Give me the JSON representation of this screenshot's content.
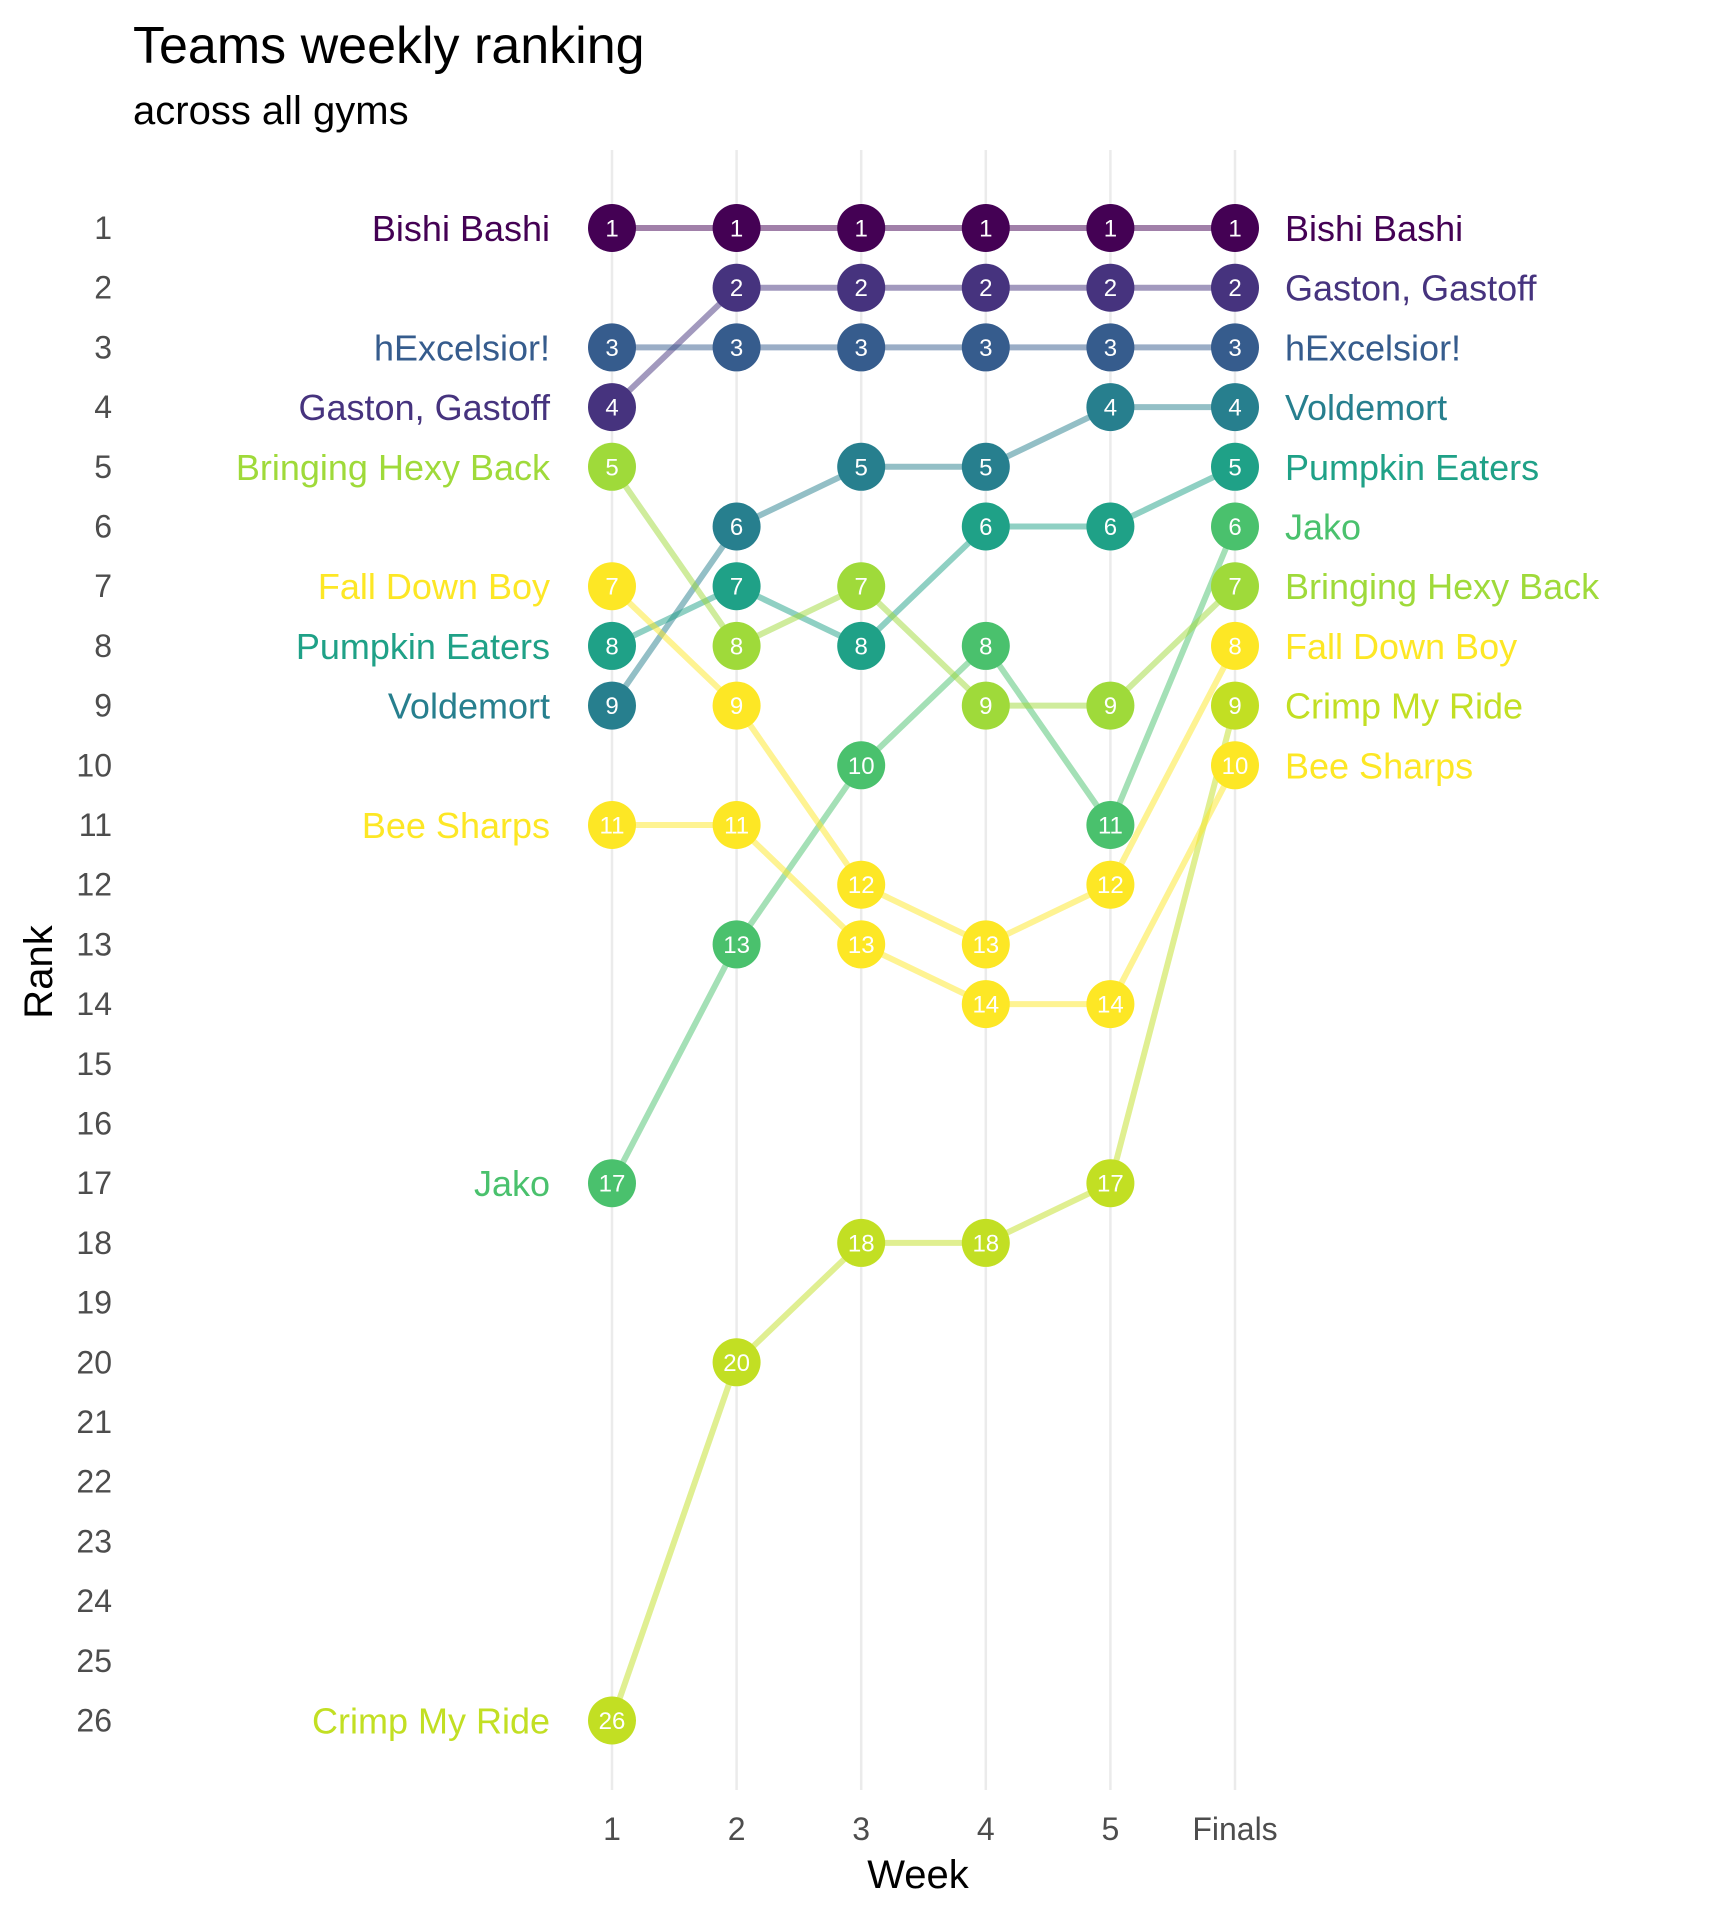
{
  "chart_data": {
    "type": "line",
    "title": "Teams weekly ranking",
    "subtitle": "across all gyms",
    "xlabel": "Week",
    "ylabel": "Rank",
    "categories": [
      "1",
      "2",
      "3",
      "4",
      "5",
      "Finals"
    ],
    "y_ticks": [
      1,
      2,
      3,
      4,
      5,
      6,
      7,
      8,
      9,
      10,
      11,
      12,
      13,
      14,
      15,
      16,
      17,
      18,
      19,
      20,
      21,
      22,
      23,
      24,
      25,
      26
    ],
    "ylim": [
      26,
      1
    ],
    "grid": "vertical-major",
    "series": [
      {
        "name": "Bishi Bashi",
        "color": "#440154",
        "values": [
          1,
          1,
          1,
          1,
          1,
          1
        ]
      },
      {
        "name": "Gaston, Gastoff",
        "color": "#46337E",
        "values": [
          4,
          2,
          2,
          2,
          2,
          2
        ]
      },
      {
        "name": "hExcelsior!",
        "color": "#365C8D",
        "values": [
          3,
          3,
          3,
          3,
          3,
          3
        ]
      },
      {
        "name": "Voldemort",
        "color": "#277F8E",
        "values": [
          9,
          6,
          5,
          5,
          4,
          4
        ]
      },
      {
        "name": "Pumpkin Eaters",
        "color": "#1FA187",
        "values": [
          8,
          7,
          8,
          6,
          6,
          5
        ]
      },
      {
        "name": "Jako",
        "color": "#4AC16D",
        "values": [
          17,
          13,
          10,
          8,
          11,
          6
        ]
      },
      {
        "name": "Bringing Hexy Back",
        "color": "#9FDA3A",
        "values": [
          5,
          8,
          7,
          9,
          9,
          7
        ]
      },
      {
        "name": "Fall Down Boy",
        "color": "#FDE725",
        "values": [
          7,
          9,
          12,
          13,
          12,
          8
        ]
      },
      {
        "name": "Crimp My Ride",
        "color": "#C2DF23",
        "values": [
          26,
          20,
          18,
          18,
          17,
          9
        ]
      },
      {
        "name": "Bee Sharps",
        "color": "#FDE725",
        "values": [
          11,
          11,
          13,
          14,
          14,
          10
        ]
      }
    ]
  }
}
